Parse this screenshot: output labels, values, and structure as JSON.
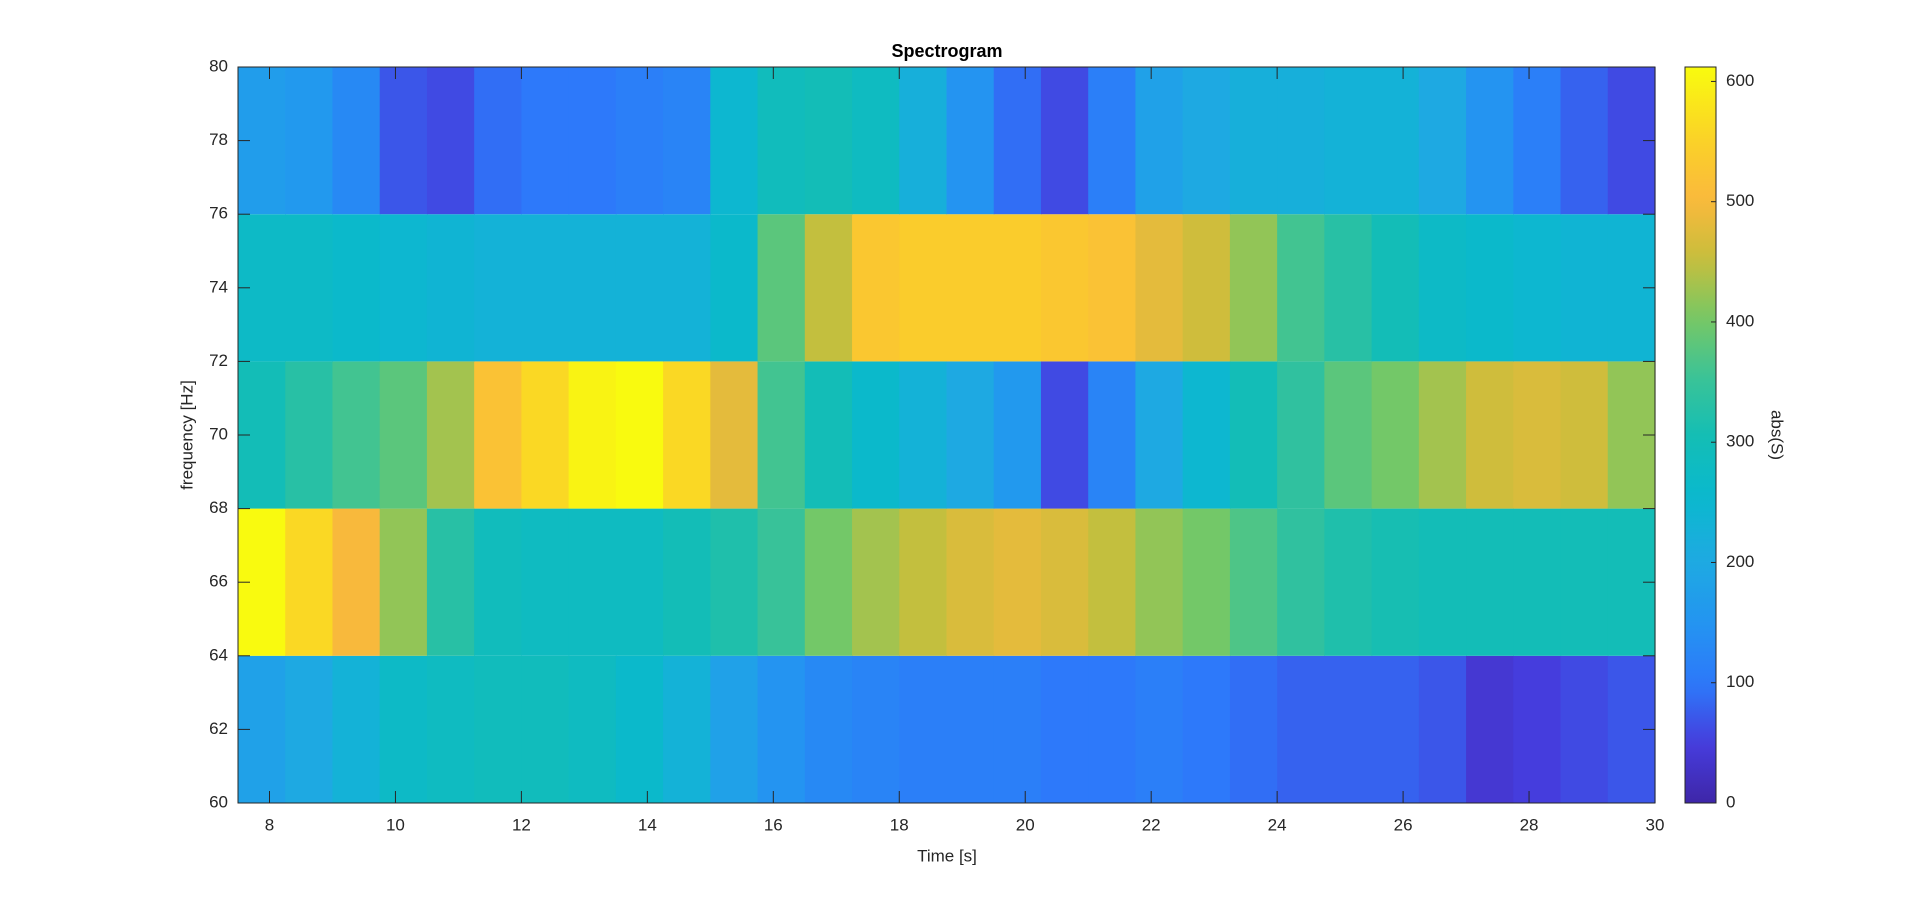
{
  "chart_data": {
    "type": "heatmap",
    "title": "Spectrogram",
    "xlabel": "Time [s]",
    "ylabel": "frequency [Hz]",
    "colorbar_label": "abs(S)",
    "x_edges": [
      7.5,
      8.25,
      9,
      9.75,
      10.5,
      11.25,
      12,
      12.75,
      13.5,
      14.25,
      15,
      15.75,
      16.5,
      17.25,
      18,
      18.75,
      19.5,
      20.25,
      21,
      21.75,
      22.5,
      23.25,
      24,
      24.75,
      25.5,
      26.25,
      27,
      27.75,
      28.5,
      29.25,
      30
    ],
    "y_edges": [
      60,
      64,
      68,
      72,
      76,
      80
    ],
    "values": [
      [
        180,
        200,
        230,
        270,
        280,
        290,
        290,
        280,
        260,
        230,
        180,
        150,
        130,
        120,
        110,
        110,
        110,
        100,
        100,
        110,
        100,
        90,
        80,
        80,
        80,
        70,
        40,
        50,
        60,
        70
      ],
      [
        610,
        560,
        500,
        420,
        330,
        290,
        280,
        280,
        280,
        300,
        320,
        350,
        400,
        430,
        450,
        470,
        480,
        470,
        450,
        420,
        400,
        370,
        340,
        320,
        310,
        300,
        300,
        300,
        300,
        300
      ],
      [
        300,
        330,
        360,
        380,
        430,
        520,
        560,
        600,
        610,
        560,
        480,
        360,
        300,
        260,
        230,
        200,
        160,
        60,
        120,
        200,
        250,
        300,
        340,
        380,
        400,
        430,
        460,
        470,
        460,
        420
      ],
      [
        270,
        270,
        260,
        250,
        240,
        230,
        230,
        230,
        230,
        230,
        260,
        380,
        450,
        530,
        540,
        540,
        540,
        530,
        520,
        480,
        460,
        420,
        360,
        330,
        300,
        270,
        260,
        250,
        240,
        240
      ],
      [
        170,
        160,
        130,
        70,
        60,
        90,
        100,
        100,
        110,
        120,
        250,
        290,
        300,
        280,
        220,
        150,
        90,
        60,
        110,
        180,
        200,
        220,
        220,
        230,
        230,
        200,
        150,
        110,
        80,
        60
      ]
    ],
    "xlim": [
      7.5,
      30
    ],
    "xticks": [
      8,
      10,
      12,
      14,
      16,
      18,
      20,
      22,
      24,
      26,
      28,
      30
    ],
    "ylim": [
      60,
      80
    ],
    "yticks": [
      60,
      62,
      64,
      66,
      68,
      70,
      72,
      74,
      76,
      78,
      80
    ],
    "clim": [
      0,
      612
    ],
    "cticks": [
      0,
      100,
      200,
      300,
      400,
      500,
      600
    ],
    "colormap": "parula"
  }
}
